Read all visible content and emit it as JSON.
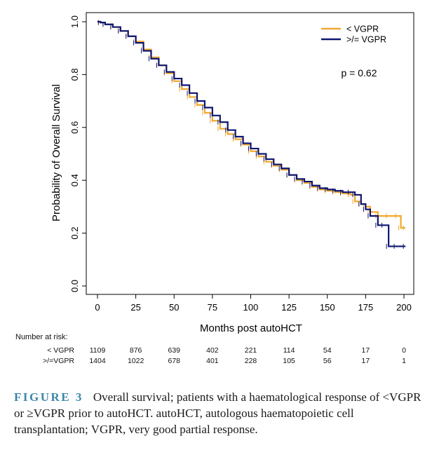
{
  "chart_data": {
    "type": "line",
    "subtype": "kaplan-meier",
    "xlabel": "Months post autoHCT",
    "ylabel": "Probability of Overall Survival",
    "xlim": [
      0,
      200
    ],
    "ylim": [
      0,
      1
    ],
    "xticks": [
      0,
      25,
      50,
      75,
      100,
      125,
      150,
      175,
      200
    ],
    "yticks": [
      "0.0",
      "0.2",
      "0.4",
      "0.6",
      "0.8",
      "1.0"
    ],
    "annotation": "p = 0.62",
    "legend_position": "top-right",
    "grid": false,
    "series": [
      {
        "name": "< VGPR",
        "color": "#f0a830",
        "x": [
          0,
          2,
          5,
          10,
          15,
          20,
          25,
          30,
          35,
          40,
          45,
          50,
          55,
          60,
          65,
          70,
          75,
          80,
          85,
          90,
          95,
          100,
          105,
          110,
          115,
          120,
          125,
          130,
          135,
          140,
          145,
          150,
          155,
          160,
          165,
          168,
          172,
          175,
          178,
          183,
          190,
          196,
          198,
          201
        ],
        "y": [
          1.0,
          0.997,
          0.99,
          0.98,
          0.965,
          0.945,
          0.925,
          0.895,
          0.865,
          0.835,
          0.805,
          0.775,
          0.745,
          0.715,
          0.685,
          0.655,
          0.625,
          0.595,
          0.575,
          0.555,
          0.535,
          0.51,
          0.49,
          0.47,
          0.455,
          0.44,
          0.42,
          0.4,
          0.39,
          0.375,
          0.365,
          0.36,
          0.355,
          0.35,
          0.345,
          0.32,
          0.31,
          0.3,
          0.28,
          0.265,
          0.265,
          0.265,
          0.22,
          0.22
        ]
      },
      {
        "name": ">/= VGPR",
        "color": "#0d1670",
        "x": [
          0,
          2,
          5,
          10,
          15,
          20,
          25,
          30,
          35,
          40,
          45,
          50,
          55,
          60,
          65,
          70,
          75,
          80,
          85,
          90,
          95,
          100,
          105,
          110,
          115,
          120,
          125,
          130,
          135,
          140,
          145,
          150,
          155,
          160,
          165,
          168,
          172,
          175,
          178,
          183,
          187,
          190,
          195,
          201
        ],
        "y": [
          1.0,
          0.997,
          0.99,
          0.98,
          0.965,
          0.945,
          0.92,
          0.89,
          0.86,
          0.835,
          0.81,
          0.785,
          0.76,
          0.73,
          0.7,
          0.675,
          0.645,
          0.62,
          0.59,
          0.565,
          0.54,
          0.52,
          0.5,
          0.48,
          0.46,
          0.445,
          0.42,
          0.405,
          0.395,
          0.38,
          0.37,
          0.365,
          0.36,
          0.355,
          0.355,
          0.345,
          0.31,
          0.29,
          0.265,
          0.23,
          0.23,
          0.15,
          0.15,
          0.15
        ]
      }
    ]
  },
  "risk_table": {
    "title": "Number at risk:",
    "x": [
      0,
      25,
      50,
      75,
      100,
      125,
      150,
      175,
      200
    ],
    "rows": [
      {
        "label": "< VGPR",
        "values": [
          "1109",
          "876",
          "639",
          "402",
          "221",
          "114",
          "54",
          "17",
          "0"
        ]
      },
      {
        "label": ">/=VGPR",
        "values": [
          "1404",
          "1022",
          "678",
          "401",
          "228",
          "105",
          "56",
          "17",
          "1"
        ]
      }
    ]
  },
  "caption": {
    "label": "FIGURE 3",
    "text": "Overall survival; patients with a haematological response of <VGPR or ≥VGPR prior to autoHCT. autoHCT, autologous haematopoietic cell transplantation; VGPR, very good partial response."
  }
}
